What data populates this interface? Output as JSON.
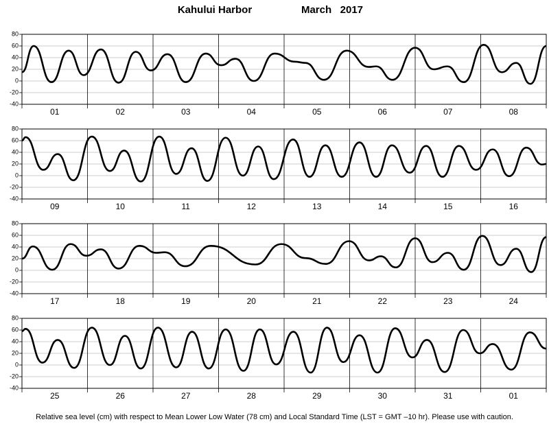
{
  "title": "Kahului Harbor",
  "subtitle": "March   2017",
  "footnote": "Relative sea level (cm) with respect to Mean Lower Low Water (78 cm) and Local Standard Time (LST = GMT –10 hr). Please use with caution.",
  "chart_data": [
    {
      "type": "line",
      "color": "#000000",
      "grid": true,
      "categories": [
        "01",
        "02",
        "03",
        "04",
        "05",
        "06",
        "07",
        "08"
      ],
      "x": [
        0,
        4.3,
        10.8,
        17.1,
        22.6,
        28.9,
        35.4,
        41.7,
        47.2,
        53.3,
        60,
        67.3,
        72.9,
        78.2,
        84.9,
        92.5,
        100,
        103.8,
        110.6,
        118.9,
        127,
        129.7,
        135.7,
        144,
        150.8,
        155.8,
        161.8,
        169.1,
        175.7,
        181,
        186.2,
        192
      ],
      "values": [
        15,
        60,
        -2,
        52,
        10,
        54,
        -3,
        50,
        18,
        46,
        -2,
        47,
        27,
        38,
        0,
        47,
        33,
        31,
        2,
        52,
        24,
        25,
        2,
        57,
        20,
        25,
        -2,
        62,
        15,
        31,
        -5,
        60
      ],
      "xlim": [
        0,
        192
      ],
      "xticks": [
        0,
        24,
        48,
        72,
        96,
        120,
        144,
        168,
        192
      ],
      "ylim": [
        -40,
        80
      ],
      "yticks": [
        -40,
        -20,
        0,
        20,
        40,
        60,
        80
      ]
    },
    {
      "type": "line",
      "color": "#000000",
      "grid": true,
      "categories": [
        "09",
        "10",
        "11",
        "12",
        "13",
        "14",
        "15",
        "16"
      ],
      "x": [
        0,
        1.3,
        7.8,
        13.1,
        18.8,
        25.6,
        32.2,
        37.4,
        43.5,
        50.3,
        56.5,
        62.1,
        67.9,
        74.6,
        80.9,
        86.5,
        92.2,
        99.3,
        105.3,
        111.1,
        117.1,
        123.6,
        129.7,
        135.5,
        142,
        148,
        154,
        160,
        166.3,
        172.4,
        178.4,
        184.7,
        190.5,
        192
      ],
      "values": [
        60,
        66,
        10,
        37,
        -8,
        67,
        8,
        43,
        -10,
        67,
        3,
        47,
        -9,
        65,
        0,
        50,
        -6,
        62,
        -2,
        52,
        -2,
        57,
        -2,
        52,
        5,
        51,
        -2,
        51,
        10,
        45,
        -1,
        48,
        19,
        20
      ],
      "xlim": [
        0,
        192
      ],
      "xticks": [
        0,
        24,
        48,
        72,
        96,
        120,
        144,
        168,
        192
      ],
      "ylim": [
        -40,
        80
      ],
      "yticks": [
        -40,
        -20,
        0,
        20,
        40,
        60,
        80
      ]
    },
    {
      "type": "line",
      "color": "#000000",
      "grid": true,
      "categories": [
        "17",
        "18",
        "19",
        "20",
        "21",
        "22",
        "23",
        "24"
      ],
      "x": [
        0,
        4,
        11.1,
        17.8,
        23.6,
        28.9,
        35.4,
        43,
        49.3,
        52.3,
        59.8,
        69.1,
        85.5,
        95,
        103.8,
        111.3,
        119.8,
        127.1,
        131.4,
        136.9,
        144,
        150.3,
        156,
        161.8,
        168.6,
        175.2,
        181,
        186.5,
        192
      ],
      "values": [
        20,
        41,
        1,
        45,
        25,
        36,
        3,
        42,
        30,
        31,
        7,
        42,
        10,
        45,
        21,
        11,
        50,
        17,
        24,
        5,
        55,
        14,
        30,
        1,
        59,
        9,
        37,
        -3,
        57
      ],
      "xlim": [
        0,
        192
      ],
      "xticks": [
        0,
        24,
        48,
        72,
        96,
        120,
        144,
        168,
        192
      ],
      "ylim": [
        -40,
        80
      ],
      "yticks": [
        -40,
        -20,
        0,
        20,
        40,
        60,
        80
      ]
    },
    {
      "type": "line",
      "color": "#000000",
      "grid": true,
      "categories": [
        "25",
        "26",
        "27",
        "28",
        "29",
        "30",
        "31",
        "01"
      ],
      "x": [
        0,
        1.3,
        7.5,
        13.1,
        19.1,
        25.6,
        32.2,
        37.7,
        43.5,
        49.8,
        56.5,
        62.3,
        68.4,
        74.6,
        81.1,
        87.1,
        93.1,
        99.4,
        105.7,
        111.7,
        117.7,
        123.6,
        130.2,
        136.7,
        143,
        148.3,
        154.8,
        161.6,
        167.6,
        172.4,
        179.2,
        186,
        192
      ],
      "values": [
        58,
        62,
        4,
        43,
        -5,
        64,
        0,
        50,
        -6,
        64,
        -4,
        57,
        -6,
        61,
        -10,
        61,
        1,
        57,
        -13,
        64,
        5,
        51,
        -13,
        63,
        13,
        43,
        -12,
        60,
        20,
        36,
        -8,
        56,
        28
      ],
      "xlim": [
        0,
        192
      ],
      "xticks": [
        0,
        24,
        48,
        72,
        96,
        120,
        144,
        168,
        192
      ],
      "ylim": [
        -40,
        80
      ],
      "yticks": [
        -40,
        -20,
        0,
        20,
        40,
        60,
        80
      ]
    }
  ]
}
